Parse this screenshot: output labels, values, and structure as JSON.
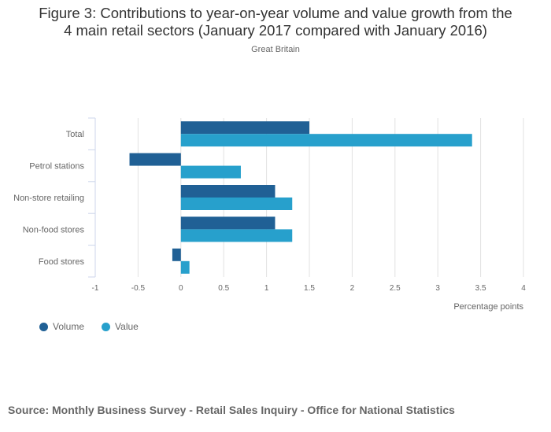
{
  "chart_data": {
    "type": "bar",
    "orientation": "horizontal",
    "title": "Figure 3: Contributions to year-on-year volume and value growth from the 4 main retail sectors (January 2017 compared with January 2016)",
    "title_lines": [
      "Figure 3: Contributions to year-on-year volume and value growth from the",
      "4 main retail sectors (January 2017 compared with January 2016)"
    ],
    "subtitle": "Great Britain",
    "categories": [
      "Total",
      "Petrol stations",
      "Non-store retailing",
      "Non-food stores",
      "Food stores"
    ],
    "series": [
      {
        "name": "Volume",
        "color": "#206095",
        "values": [
          1.5,
          -0.6,
          1.1,
          1.1,
          -0.1
        ]
      },
      {
        "name": "Value",
        "color": "#27a0cc",
        "values": [
          3.4,
          0.7,
          1.3,
          1.3,
          0.1
        ]
      }
    ],
    "xlabel": "Percentage points",
    "ylabel": "",
    "xlim": [
      -1,
      4
    ],
    "xticks": [
      -1,
      -0.5,
      0,
      0.5,
      1,
      1.5,
      2,
      2.5,
      3,
      3.5,
      4
    ],
    "xtick_labels": [
      "-1",
      "-0.5",
      "0",
      "0.5",
      "1",
      "1.5",
      "2",
      "2.5",
      "3",
      "3.5",
      "4"
    ],
    "grid": true,
    "legend_position": "bottom-left"
  },
  "source": "Source: Monthly Business Survey - Retail Sales Inquiry - Office for National Statistics"
}
